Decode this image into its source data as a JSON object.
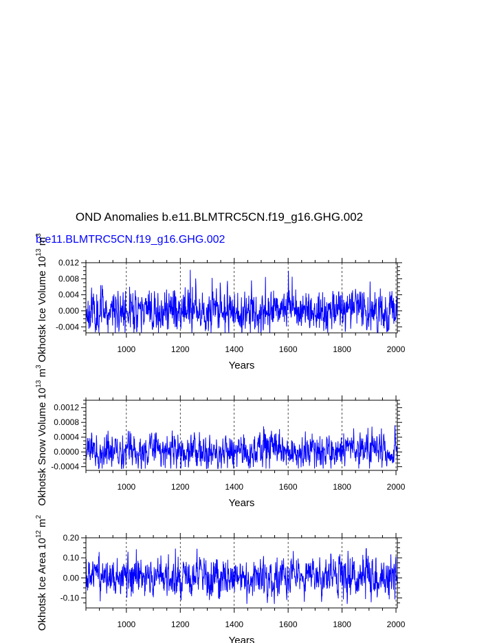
{
  "title": "OND Anomalies b.e11.BLMTRC5CN.f19_g16.GHG.002",
  "subtitle": "b.e11.BLMTRC5CN.f19_g16.GHG.002",
  "colors": {
    "series": "#0000ff",
    "axes": "#000000"
  },
  "chart_data": [
    {
      "type": "line",
      "ylabel": "Okhotsk Ice Volume 10",
      "ylabel_exp": "13",
      "ylabel_unit": " m",
      "ylabel_unit_exp": "3",
      "xlabel": "Years",
      "xlim": [
        850,
        2005
      ],
      "ylim": [
        -0.0055,
        0.012
      ],
      "xticks": [
        1000,
        1200,
        1400,
        1600,
        1800,
        2000
      ],
      "xtick_labels": [
        "1000",
        "1200",
        "1400",
        "1600",
        "1800",
        "2000"
      ],
      "yticks": [
        -0.004,
        0.0,
        0.004,
        0.008,
        0.012
      ],
      "ytick_labels": [
        "-0.004",
        "0.000",
        "0.004",
        "0.008",
        "0.012"
      ],
      "grid": "vertical dashed at x ticks",
      "series": [
        {
          "amplitude": 0.0025,
          "min": -0.0055,
          "max": 0.0115,
          "seed": 11
        }
      ]
    },
    {
      "type": "line",
      "ylabel": "Okhotsk Snow Volume 10",
      "ylabel_exp": "13",
      "ylabel_unit": " m",
      "ylabel_unit_exp": "3",
      "xlabel": "Years",
      "xlim": [
        850,
        2005
      ],
      "ylim": [
        -0.0005,
        0.0014
      ],
      "xticks": [
        1000,
        1200,
        1400,
        1600,
        1800,
        2000
      ],
      "xtick_labels": [
        "1000",
        "1200",
        "1400",
        "1600",
        "1800",
        "2000"
      ],
      "yticks": [
        -0.0004,
        0.0,
        0.0004,
        0.0008,
        0.0012
      ],
      "ytick_labels": [
        "-0.0004",
        "0.0000",
        "0.0004",
        "0.0008",
        "0.0012"
      ],
      "grid": "vertical dashed at x ticks",
      "series": [
        {
          "amplitude": 0.00022,
          "min": -0.00045,
          "max": 0.0013,
          "seed": 23
        }
      ]
    },
    {
      "type": "line",
      "ylabel": "Okhotsk Ice Area 10",
      "ylabel_exp": "12",
      "ylabel_unit": " m",
      "ylabel_unit_exp": "2",
      "xlabel": "Years",
      "xlim": [
        850,
        2005
      ],
      "ylim": [
        -0.15,
        0.2
      ],
      "xticks": [
        1000,
        1200,
        1400,
        1600,
        1800,
        2000
      ],
      "xtick_labels": [
        "1000",
        "1200",
        "1400",
        "1600",
        "1800",
        "2000"
      ],
      "yticks": [
        -0.1,
        0.0,
        0.1,
        0.2
      ],
      "ytick_labels": [
        "-0.10",
        "0.00",
        "0.10",
        "0.20"
      ],
      "grid": "vertical dashed at x ticks",
      "series": [
        {
          "amplitude": 0.045,
          "min": -0.13,
          "max": 0.195,
          "seed": 37
        }
      ]
    }
  ]
}
